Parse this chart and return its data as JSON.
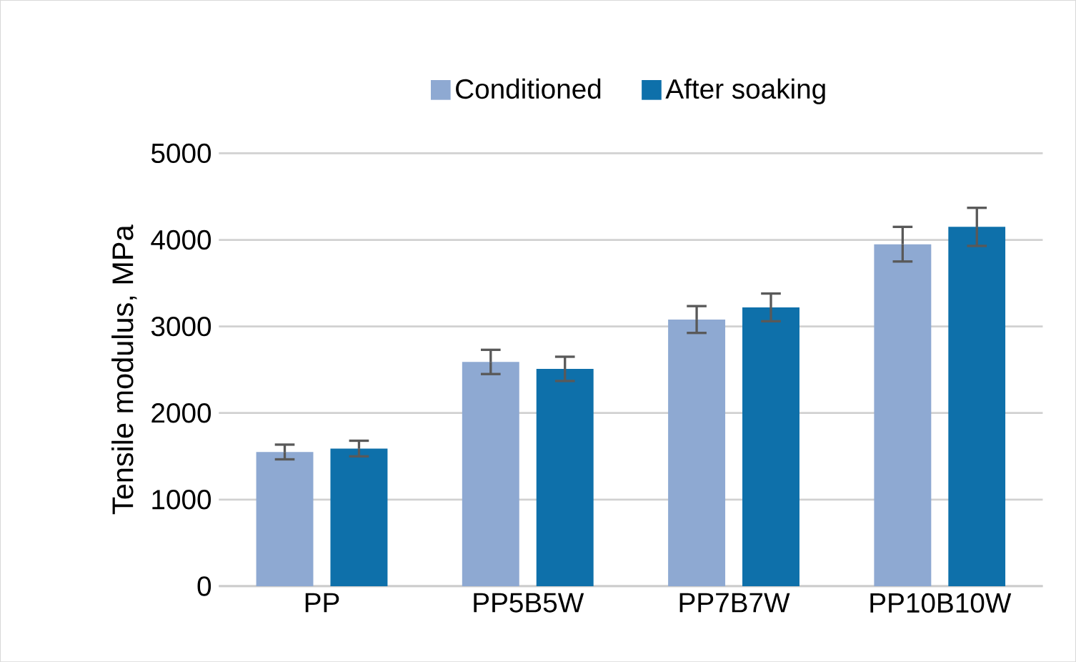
{
  "chart_data": {
    "type": "bar",
    "ylabel": "Tensile modulus, MPa",
    "categories": [
      "PP",
      "PP5B5W",
      "PP7B7W",
      "PP10B10W"
    ],
    "series": [
      {
        "name": "Conditioned",
        "color": "#8ea9d2",
        "values": [
          1550,
          2590,
          3080,
          3950
        ],
        "errors": [
          85,
          140,
          155,
          200
        ]
      },
      {
        "name": "After soaking",
        "color": "#0e70aa",
        "values": [
          1590,
          2510,
          3220,
          4150
        ],
        "errors": [
          90,
          140,
          160,
          220
        ]
      }
    ],
    "ylim": [
      0,
      5000
    ],
    "yticks": [
      0,
      1000,
      2000,
      3000,
      4000,
      5000
    ],
    "grid": "y",
    "legend": "top"
  }
}
